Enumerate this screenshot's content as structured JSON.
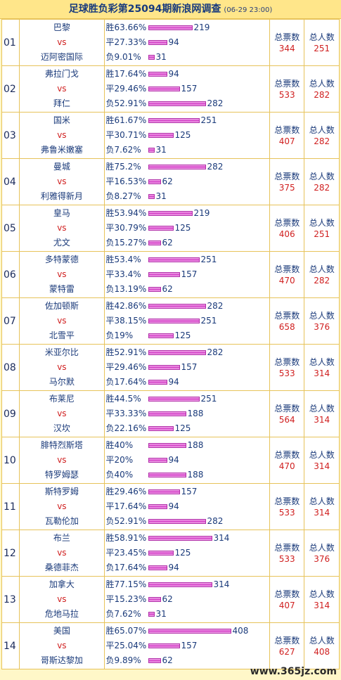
{
  "header": {
    "title": "足球胜负彩第25094期新浪网调查",
    "time": "(06-29 23:00)"
  },
  "labels": {
    "win": "胜",
    "draw": "平",
    "lose": "负",
    "vs": "vs",
    "votes": "总票数",
    "people": "总人数"
  },
  "matches": [
    {
      "no": "01",
      "home": "巴黎",
      "away": "迈阿密国际",
      "win": {
        "pct": "63.66%",
        "count": 219
      },
      "draw": {
        "pct": "27.33%",
        "count": 94
      },
      "lose": {
        "pct": "9.01%",
        "count": 31
      },
      "votes": "344",
      "people": "251"
    },
    {
      "no": "02",
      "home": "弗拉门戈",
      "away": "拜仁",
      "win": {
        "pct": "17.64%",
        "count": 94
      },
      "draw": {
        "pct": "29.46%",
        "count": 157
      },
      "lose": {
        "pct": "52.91%",
        "count": 282
      },
      "votes": "533",
      "people": "282"
    },
    {
      "no": "03",
      "home": "国米",
      "away": "弗鲁米嫩塞",
      "win": {
        "pct": "61.67%",
        "count": 251
      },
      "draw": {
        "pct": "30.71%",
        "count": 125
      },
      "lose": {
        "pct": "7.62%",
        "count": 31
      },
      "votes": "407",
      "people": "282"
    },
    {
      "no": "04",
      "home": "曼城",
      "away": "利雅得新月",
      "win": {
        "pct": "75.2%",
        "count": 282
      },
      "draw": {
        "pct": "16.53%",
        "count": 62
      },
      "lose": {
        "pct": "8.27%",
        "count": 31
      },
      "votes": "375",
      "people": "282"
    },
    {
      "no": "05",
      "home": "皇马",
      "away": "尤文",
      "win": {
        "pct": "53.94%",
        "count": 219
      },
      "draw": {
        "pct": "30.79%",
        "count": 125
      },
      "lose": {
        "pct": "15.27%",
        "count": 62
      },
      "votes": "406",
      "people": "251"
    },
    {
      "no": "06",
      "home": "多特蒙德",
      "away": "蒙特雷",
      "win": {
        "pct": "53.4%",
        "count": 251
      },
      "draw": {
        "pct": "33.4%",
        "count": 157
      },
      "lose": {
        "pct": "13.19%",
        "count": 62
      },
      "votes": "470",
      "people": "282"
    },
    {
      "no": "07",
      "home": "佐加顿斯",
      "away": "北雪平",
      "win": {
        "pct": "42.86%",
        "count": 282
      },
      "draw": {
        "pct": "38.15%",
        "count": 251
      },
      "lose": {
        "pct": "19%",
        "count": 125
      },
      "votes": "658",
      "people": "376"
    },
    {
      "no": "08",
      "home": "米亚尔比",
      "away": "马尔默",
      "win": {
        "pct": "52.91%",
        "count": 282
      },
      "draw": {
        "pct": "29.46%",
        "count": 157
      },
      "lose": {
        "pct": "17.64%",
        "count": 94
      },
      "votes": "533",
      "people": "314"
    },
    {
      "no": "09",
      "home": "布莱尼",
      "away": "汉坎",
      "win": {
        "pct": "44.5%",
        "count": 251
      },
      "draw": {
        "pct": "33.33%",
        "count": 188
      },
      "lose": {
        "pct": "22.16%",
        "count": 125
      },
      "votes": "564",
      "people": "314"
    },
    {
      "no": "10",
      "home": "腓特烈斯塔",
      "away": "特罗姆瑟",
      "win": {
        "pct": "40%",
        "count": 188
      },
      "draw": {
        "pct": "20%",
        "count": 94
      },
      "lose": {
        "pct": "40%",
        "count": 188
      },
      "votes": "470",
      "people": "314"
    },
    {
      "no": "11",
      "home": "斯特罗姆",
      "away": "瓦勒伦加",
      "win": {
        "pct": "29.46%",
        "count": 157
      },
      "draw": {
        "pct": "17.64%",
        "count": 94
      },
      "lose": {
        "pct": "52.91%",
        "count": 282
      },
      "votes": "533",
      "people": "314"
    },
    {
      "no": "12",
      "home": "布兰",
      "away": "桑德菲杰",
      "win": {
        "pct": "58.91%",
        "count": 314
      },
      "draw": {
        "pct": "23.45%",
        "count": 125
      },
      "lose": {
        "pct": "17.64%",
        "count": 94
      },
      "votes": "533",
      "people": "376"
    },
    {
      "no": "13",
      "home": "加拿大",
      "away": "危地马拉",
      "win": {
        "pct": "77.15%",
        "count": 314
      },
      "draw": {
        "pct": "15.23%",
        "count": 62
      },
      "lose": {
        "pct": "7.62%",
        "count": 31
      },
      "votes": "407",
      "people": "314"
    },
    {
      "no": "14",
      "home": "美国",
      "away": "哥斯达黎加",
      "win": {
        "pct": "65.07%",
        "count": 408
      },
      "draw": {
        "pct": "25.04%",
        "count": 157
      },
      "lose": {
        "pct": "9.89%",
        "count": 62
      },
      "votes": "627",
      "people": "408"
    }
  ],
  "watermark": "www.365jz.com",
  "colors": {
    "background": "#fff7c8",
    "header": "#ffe68a",
    "border": "#e7c35a",
    "bar": "#d240c6",
    "accent_red": "#d02020",
    "text_blue": "#1a3a7a"
  }
}
